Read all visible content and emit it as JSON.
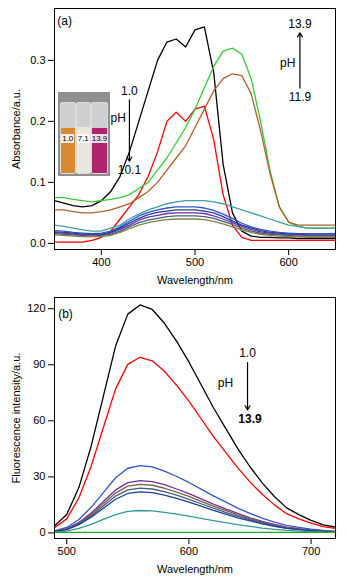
{
  "chart_data": [
    {
      "type": "line",
      "title": "(a)",
      "xlabel": "Wavelength/nm",
      "ylabel": "Absorbance/a.u.",
      "xlim": [
        350,
        650
      ],
      "xticks": [
        400,
        500,
        600
      ],
      "ylim": [
        -0.01,
        0.385
      ],
      "yticks": [
        {
          "value": 0,
          "label": "0.0"
        },
        0.1,
        0.2,
        0.3
      ],
      "grid": false,
      "x": [
        350,
        360,
        370,
        380,
        390,
        400,
        410,
        420,
        430,
        440,
        450,
        460,
        470,
        480,
        490,
        500,
        510,
        520,
        530,
        540,
        550,
        560,
        570,
        580,
        590,
        600,
        610,
        620,
        630,
        640,
        650
      ],
      "series": [
        {
          "color": "#000000",
          "values": [
            0.07,
            0.066,
            0.062,
            0.06,
            0.062,
            0.07,
            0.085,
            0.11,
            0.15,
            0.2,
            0.25,
            0.3,
            0.33,
            0.335,
            0.322,
            0.35,
            0.355,
            0.28,
            0.13,
            0.05,
            0.02,
            0.012,
            0.01,
            0.01,
            0.009,
            0.009,
            0.008,
            0.008,
            0.008,
            0.008,
            0.008
          ]
        },
        {
          "color": "#ff0000",
          "values": [
            0.002,
            0.002,
            0.002,
            0.002,
            0.005,
            0.01,
            0.02,
            0.04,
            0.06,
            0.08,
            0.11,
            0.15,
            0.2,
            0.215,
            0.2,
            0.22,
            0.225,
            0.17,
            0.08,
            0.03,
            0.01,
            0.005,
            0.005,
            0.005,
            0.005,
            0.005,
            0.005,
            0.005,
            0.005,
            0.005,
            0.005
          ]
        },
        {
          "color": "#33cc33",
          "values": [
            0.075,
            0.075,
            0.072,
            0.07,
            0.068,
            0.07,
            0.072,
            0.075,
            0.08,
            0.09,
            0.1,
            0.12,
            0.14,
            0.165,
            0.19,
            0.22,
            0.255,
            0.29,
            0.315,
            0.32,
            0.31,
            0.27,
            0.2,
            0.12,
            0.06,
            0.035,
            0.028,
            0.025,
            0.025,
            0.025,
            0.025
          ]
        },
        {
          "color": "#b0602a",
          "values": [
            0.055,
            0.055,
            0.052,
            0.05,
            0.05,
            0.052,
            0.055,
            0.06,
            0.065,
            0.075,
            0.085,
            0.1,
            0.12,
            0.14,
            0.16,
            0.19,
            0.22,
            0.25,
            0.27,
            0.278,
            0.275,
            0.245,
            0.185,
            0.115,
            0.06,
            0.035,
            0.03,
            0.03,
            0.03,
            0.03,
            0.03
          ]
        },
        {
          "color": "#3fa0a0",
          "values": [
            0.03,
            0.028,
            0.025,
            0.022,
            0.02,
            0.02,
            0.025,
            0.03,
            0.04,
            0.048,
            0.055,
            0.06,
            0.065,
            0.068,
            0.07,
            0.07,
            0.07,
            0.068,
            0.065,
            0.06,
            0.055,
            0.05,
            0.045,
            0.04,
            0.035,
            0.03,
            0.028,
            0.025,
            0.025,
            0.025,
            0.025
          ]
        },
        {
          "color": "#3355cc",
          "values": [
            0.021,
            0.02,
            0.018,
            0.017,
            0.016,
            0.017,
            0.02,
            0.027,
            0.036,
            0.045,
            0.051,
            0.055,
            0.058,
            0.06,
            0.06,
            0.06,
            0.058,
            0.054,
            0.048,
            0.041,
            0.033,
            0.027,
            0.023,
            0.02,
            0.018,
            0.017,
            0.016,
            0.016,
            0.016,
            0.016,
            0.016
          ]
        },
        {
          "color": "#1f3fa0",
          "values": [
            0.019,
            0.018,
            0.017,
            0.015,
            0.015,
            0.015,
            0.018,
            0.025,
            0.033,
            0.041,
            0.047,
            0.051,
            0.053,
            0.055,
            0.055,
            0.055,
            0.053,
            0.05,
            0.044,
            0.037,
            0.03,
            0.025,
            0.021,
            0.018,
            0.017,
            0.015,
            0.015,
            0.014,
            0.014,
            0.014,
            0.014
          ]
        },
        {
          "color": "#7030a0",
          "values": [
            0.018,
            0.017,
            0.015,
            0.014,
            0.014,
            0.014,
            0.017,
            0.023,
            0.03,
            0.038,
            0.043,
            0.046,
            0.049,
            0.05,
            0.05,
            0.05,
            0.049,
            0.045,
            0.04,
            0.034,
            0.028,
            0.023,
            0.019,
            0.017,
            0.015,
            0.014,
            0.014,
            0.013,
            0.013,
            0.013,
            0.013
          ]
        },
        {
          "color": "#406080",
          "values": [
            0.016,
            0.015,
            0.014,
            0.013,
            0.012,
            0.013,
            0.015,
            0.02,
            0.027,
            0.034,
            0.038,
            0.041,
            0.044,
            0.045,
            0.045,
            0.045,
            0.044,
            0.041,
            0.036,
            0.031,
            0.025,
            0.02,
            0.017,
            0.015,
            0.014,
            0.013,
            0.012,
            0.012,
            0.012,
            0.012,
            0.012
          ]
        },
        {
          "color": "#808040",
          "values": [
            0.014,
            0.013,
            0.012,
            0.011,
            0.011,
            0.011,
            0.013,
            0.018,
            0.024,
            0.03,
            0.034,
            0.037,
            0.039,
            0.04,
            0.04,
            0.04,
            0.039,
            0.036,
            0.032,
            0.027,
            0.022,
            0.018,
            0.015,
            0.013,
            0.012,
            0.011,
            0.011,
            0.01,
            0.01,
            0.01,
            0.01
          ]
        }
      ],
      "annotations": [
        {
          "text": "(a)",
          "x": 353,
          "y": 0.365
        },
        {
          "text": "1.0",
          "x": 430,
          "y": 0.25
        },
        {
          "text": "pH",
          "x": 418,
          "y": 0.205
        },
        {
          "text": "10.1",
          "x": 430,
          "y": 0.12
        },
        {
          "text": "13.9",
          "x": 612,
          "y": 0.36
        },
        {
          "text": "pH",
          "x": 599,
          "y": 0.295
        },
        {
          "text": "11.9",
          "x": 612,
          "y": 0.24
        }
      ],
      "inset": {
        "labels": [
          "1.0",
          "7.1",
          "13.9"
        ],
        "colors": [
          "#d88a30",
          "#ebe6e0",
          "#b0246e"
        ]
      }
    },
    {
      "type": "line",
      "title": "(b)",
      "xlabel": "Wavelength/nm",
      "ylabel": "Fluorescence intensity/a.u.",
      "xlim": [
        490,
        720
      ],
      "xticks": [
        500,
        600,
        700
      ],
      "ylim": [
        -3,
        126
      ],
      "yticks": [
        0,
        30,
        60,
        90,
        120
      ],
      "grid": false,
      "x": [
        490,
        500,
        510,
        520,
        530,
        540,
        550,
        560,
        570,
        580,
        590,
        600,
        610,
        620,
        630,
        640,
        650,
        660,
        670,
        680,
        690,
        700,
        710,
        720
      ],
      "series": [
        {
          "color": "#000000",
          "values": [
            3.7,
            9.8,
            24.4,
            46.4,
            73.2,
            100,
            117.1,
            122,
            119.6,
            112.2,
            102.5,
            91.5,
            79.3,
            67.1,
            56.1,
            45.1,
            35.4,
            26.8,
            19.5,
            13.4,
            9.8,
            6.7,
            4.3,
            3.1
          ]
        },
        {
          "color": "#ff0000",
          "values": [
            2.8,
            7.5,
            18.8,
            35.7,
            56.4,
            77.1,
            90.2,
            94,
            92.1,
            86.5,
            79,
            70.5,
            61.1,
            51.7,
            43.2,
            34.8,
            27.3,
            20.7,
            15,
            10.3,
            7.5,
            5.2,
            3.3,
            2.4
          ]
        },
        {
          "color": "#3355cc",
          "values": [
            1.1,
            2.9,
            7.2,
            13.7,
            21.6,
            29.5,
            34.6,
            36,
            35.3,
            33.1,
            30.2,
            27,
            23.4,
            19.8,
            16.6,
            13.3,
            10.4,
            7.9,
            5.8,
            4,
            2.9,
            2,
            1.3,
            0.9
          ]
        },
        {
          "color": "#7030a0",
          "values": [
            0.8,
            2.2,
            5.6,
            10.6,
            16.8,
            23,
            26.9,
            28,
            27.4,
            25.8,
            23.5,
            21,
            18.2,
            15.4,
            12.9,
            10.4,
            8.1,
            6.2,
            4.5,
            3.1,
            2.2,
            1.5,
            1,
            0.7
          ]
        },
        {
          "color": "#806040",
          "values": [
            0.8,
            2.1,
            5.2,
            9.9,
            15.6,
            21.3,
            25,
            26,
            25.5,
            23.9,
            21.8,
            19.5,
            16.9,
            14.3,
            12,
            9.6,
            7.5,
            5.7,
            4.2,
            2.9,
            2.1,
            1.4,
            0.9,
            0.7
          ]
        },
        {
          "color": "#406080",
          "values": [
            0.7,
            1.9,
            4.8,
            9.1,
            14.4,
            19.7,
            23,
            24,
            23.5,
            22.1,
            20.2,
            18,
            15.6,
            13.2,
            11,
            8.9,
            7,
            5.3,
            3.8,
            2.6,
            1.9,
            1.3,
            0.8,
            0.6
          ]
        },
        {
          "color": "#1f3fa0",
          "values": [
            0.7,
            1.8,
            4.4,
            8.4,
            13.2,
            18,
            21.1,
            22,
            21.6,
            20.2,
            18.5,
            16.5,
            14.3,
            12.1,
            10.1,
            8.1,
            6.4,
            4.8,
            3.5,
            2.4,
            1.8,
            1.2,
            0.8,
            0.6
          ]
        },
        {
          "color": "#339999",
          "values": [
            0.4,
            1,
            2.4,
            4.6,
            7.2,
            9.8,
            11.5,
            12,
            11.8,
            11,
            10.1,
            9,
            7.8,
            6.6,
            5.5,
            4.4,
            3.5,
            2.6,
            1.9,
            1.3,
            1,
            0.7,
            0.4,
            0.3
          ]
        },
        {
          "color": "#22aa22",
          "values": [
            0.3,
            0.3,
            0.3,
            0.3,
            0.3,
            0.3,
            0.3,
            0.3,
            0.3,
            0.3,
            0.3,
            0.3,
            0.3,
            0.3,
            0.3,
            0.3,
            0.3,
            0.3,
            0.3,
            0.3,
            0.3,
            0.3,
            0.3,
            0.3
          ]
        }
      ],
      "annotations": [
        {
          "text": "(b)",
          "x": 493,
          "y": 117
        },
        {
          "text": "1.0",
          "x": 648,
          "y": 96
        },
        {
          "text": "pH",
          "x": 630,
          "y": 80
        },
        {
          "text": "13.9",
          "x": 650,
          "y": 61
        }
      ]
    }
  ]
}
